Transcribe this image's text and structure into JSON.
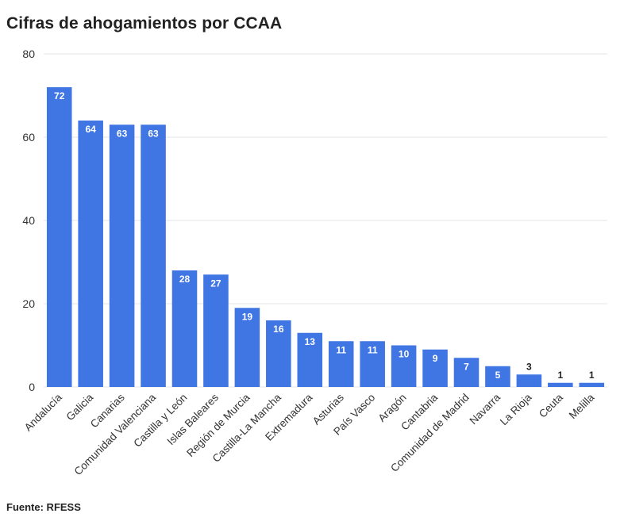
{
  "title": "Cifras de ahogamientos por CCAA",
  "source": "Fuente: RFESS",
  "colors": {
    "bar": "#3f76e4",
    "grid": "#e6e6e6",
    "label_inside": "#ffffff",
    "label_outside": "#222222"
  },
  "chart_data": {
    "type": "bar",
    "categories": [
      "Andalucía",
      "Galicia",
      "Canarias",
      "Comunidad Valenciana",
      "Castilla y León",
      "Islas Baleares",
      "Región de Murcia",
      "Castilla-La Mancha",
      "Extremadura",
      "Asturias",
      "País Vasco",
      "Aragón",
      "Cantabria",
      "Comunidad de Madrid",
      "Navarra",
      "La Rioja",
      "Ceuta",
      "Melilla"
    ],
    "values": [
      72,
      64,
      63,
      63,
      28,
      27,
      19,
      16,
      13,
      11,
      11,
      10,
      9,
      7,
      5,
      3,
      1,
      1
    ],
    "ylim": [
      0,
      80
    ],
    "yticks": [
      0,
      20,
      40,
      60,
      80
    ],
    "grid": true
  }
}
